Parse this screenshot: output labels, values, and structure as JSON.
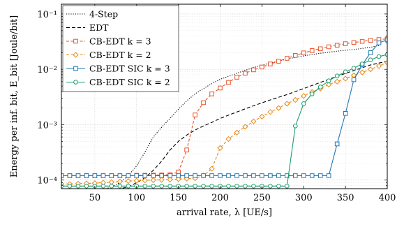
{
  "chart_data": {
    "type": "line",
    "title": "",
    "xlabel": "arrival rate, λ [UE/s]",
    "ylabel": "Energy per inf. bit, E_bit [Joule/bit]",
    "xlim": [
      10,
      400
    ],
    "ylim": [
      7e-05,
      0.15
    ],
    "yscale": "log",
    "grid": true,
    "legend_position": "top-left",
    "x_ticks": [
      50,
      100,
      150,
      200,
      250,
      300,
      350,
      400
    ],
    "x_tick_labels": [
      "50",
      "100",
      "150",
      "200",
      "250",
      "300",
      "350",
      "400"
    ],
    "y_ticks": [
      0.0001,
      0.001,
      0.01,
      0.1
    ],
    "y_tick_labels": [
      "10⁻⁴",
      "10⁻³",
      "10⁻²",
      "10⁻¹"
    ],
    "series": [
      {
        "name": "4-Step",
        "color": "#000000",
        "dash": "1.2 2",
        "marker": "none",
        "points": [
          [
            10,
            5.5e-05
          ],
          [
            30,
            5.8e-05
          ],
          [
            50,
            6.2e-05
          ],
          [
            70,
            7.5e-05
          ],
          [
            80,
            9e-05
          ],
          [
            90,
            0.00012
          ],
          [
            100,
            0.00018
          ],
          [
            110,
            0.00032
          ],
          [
            120,
            0.0006
          ],
          [
            130,
            0.0009
          ],
          [
            140,
            0.0013
          ],
          [
            150,
            0.0019
          ],
          [
            160,
            0.0027
          ],
          [
            170,
            0.0036
          ],
          [
            180,
            0.0045
          ],
          [
            190,
            0.0055
          ],
          [
            200,
            0.0066
          ],
          [
            220,
            0.0085
          ],
          [
            240,
            0.0108
          ],
          [
            260,
            0.013
          ],
          [
            280,
            0.0153
          ],
          [
            300,
            0.0175
          ],
          [
            320,
            0.0195
          ],
          [
            340,
            0.0213
          ],
          [
            360,
            0.0228
          ],
          [
            380,
            0.025
          ],
          [
            390,
            0.027
          ]
        ]
      },
      {
        "name": "EDT",
        "color": "#000000",
        "dash": "5 3",
        "marker": "none",
        "points": [
          [
            10,
            6e-05
          ],
          [
            30,
            6.2e-05
          ],
          [
            50,
            6.5e-05
          ],
          [
            70,
            6.8e-05
          ],
          [
            80,
            7e-05
          ],
          [
            90,
            7.5e-05
          ],
          [
            100,
            9e-05
          ],
          [
            110,
            0.00011
          ],
          [
            120,
            0.00015
          ],
          [
            130,
            0.00022
          ],
          [
            140,
            0.00035
          ],
          [
            150,
            0.0005
          ],
          [
            160,
            0.00065
          ],
          [
            170,
            0.0008
          ],
          [
            180,
            0.00095
          ],
          [
            190,
            0.0011
          ],
          [
            200,
            0.0013
          ],
          [
            220,
            0.0017
          ],
          [
            240,
            0.0022
          ],
          [
            260,
            0.0028
          ],
          [
            280,
            0.0035
          ],
          [
            300,
            0.0045
          ],
          [
            320,
            0.0058
          ],
          [
            340,
            0.0075
          ],
          [
            360,
            0.0095
          ],
          [
            380,
            0.012
          ],
          [
            400,
            0.014
          ]
        ]
      },
      {
        "name": "CB-EDT k = 3",
        "color": "#e8542a",
        "dash": "4 2.5",
        "marker": "square",
        "points": [
          [
            10,
            0.00012
          ],
          [
            20,
            0.00012
          ],
          [
            30,
            0.00012
          ],
          [
            40,
            0.00012
          ],
          [
            50,
            0.00012
          ],
          [
            60,
            0.00012
          ],
          [
            70,
            0.00012
          ],
          [
            80,
            0.00012
          ],
          [
            90,
            0.00012
          ],
          [
            100,
            0.000122
          ],
          [
            110,
            0.000122
          ],
          [
            120,
            0.000123
          ],
          [
            130,
            0.000124
          ],
          [
            140,
            0.000125
          ],
          [
            150,
            0.00014
          ],
          [
            160,
            0.00035
          ],
          [
            170,
            0.0015
          ],
          [
            180,
            0.0025
          ],
          [
            190,
            0.0036
          ],
          [
            200,
            0.0046
          ],
          [
            210,
            0.0058
          ],
          [
            220,
            0.0072
          ],
          [
            230,
            0.0085
          ],
          [
            240,
            0.0098
          ],
          [
            250,
            0.011
          ],
          [
            260,
            0.0125
          ],
          [
            270,
            0.014
          ],
          [
            280,
            0.0158
          ],
          [
            290,
            0.0178
          ],
          [
            300,
            0.0198
          ],
          [
            310,
            0.0218
          ],
          [
            320,
            0.0235
          ],
          [
            330,
            0.0255
          ],
          [
            340,
            0.0272
          ],
          [
            350,
            0.029
          ],
          [
            360,
            0.0305
          ],
          [
            370,
            0.032
          ],
          [
            380,
            0.0333
          ],
          [
            390,
            0.0345
          ],
          [
            400,
            0.0355
          ]
        ]
      },
      {
        "name": "CB-EDT k = 2",
        "color": "#e8891a",
        "dash": "4 2.5",
        "marker": "diamond",
        "points": [
          [
            10,
            8.5e-05
          ],
          [
            20,
            8.5e-05
          ],
          [
            30,
            8.6e-05
          ],
          [
            40,
            8.7e-05
          ],
          [
            50,
            8.8e-05
          ],
          [
            60,
            9e-05
          ],
          [
            70,
            9.2e-05
          ],
          [
            80,
            9.4e-05
          ],
          [
            90,
            9.6e-05
          ],
          [
            100,
            9.75e-05
          ],
          [
            110,
            9.9e-05
          ],
          [
            120,
            0.0001
          ],
          [
            130,
            0.000101
          ],
          [
            140,
            0.000102
          ],
          [
            150,
            0.000104
          ],
          [
            160,
            0.000106
          ],
          [
            170,
            0.000108
          ],
          [
            180,
            0.00012
          ],
          [
            190,
            0.00016
          ],
          [
            200,
            0.00038
          ],
          [
            210,
            0.00055
          ],
          [
            220,
            0.00072
          ],
          [
            230,
            0.00092
          ],
          [
            240,
            0.00115
          ],
          [
            250,
            0.0014
          ],
          [
            260,
            0.0017
          ],
          [
            270,
            0.002
          ],
          [
            280,
            0.0024
          ],
          [
            290,
            0.0028
          ],
          [
            300,
            0.0033
          ],
          [
            310,
            0.0039
          ],
          [
            320,
            0.0045
          ],
          [
            330,
            0.0053
          ],
          [
            340,
            0.006
          ],
          [
            350,
            0.0068
          ],
          [
            360,
            0.0078
          ],
          [
            370,
            0.0088
          ],
          [
            380,
            0.01
          ],
          [
            390,
            0.0115
          ],
          [
            400,
            0.0132
          ]
        ]
      },
      {
        "name": "CB-EDT SIC k = 3",
        "color": "#1f77b4",
        "dash": "",
        "marker": "square",
        "points": [
          [
            10,
            0.00012
          ],
          [
            20,
            0.00012
          ],
          [
            30,
            0.00012
          ],
          [
            40,
            0.00012
          ],
          [
            50,
            0.00012
          ],
          [
            60,
            0.00012
          ],
          [
            70,
            0.00012
          ],
          [
            80,
            0.00012
          ],
          [
            90,
            0.00012
          ],
          [
            100,
            0.00012
          ],
          [
            110,
            0.00012
          ],
          [
            120,
            0.00012
          ],
          [
            130,
            0.00012
          ],
          [
            140,
            0.00012
          ],
          [
            150,
            0.00012
          ],
          [
            160,
            0.00012
          ],
          [
            170,
            0.00012
          ],
          [
            180,
            0.00012
          ],
          [
            190,
            0.00012
          ],
          [
            200,
            0.00012
          ],
          [
            210,
            0.00012
          ],
          [
            220,
            0.00012
          ],
          [
            230,
            0.00012
          ],
          [
            240,
            0.00012
          ],
          [
            250,
            0.00012
          ],
          [
            260,
            0.00012
          ],
          [
            270,
            0.00012
          ],
          [
            280,
            0.00012
          ],
          [
            290,
            0.00012
          ],
          [
            300,
            0.00012
          ],
          [
            310,
            0.00012
          ],
          [
            320,
            0.00012
          ],
          [
            330,
            0.00012
          ],
          [
            340,
            0.00045
          ],
          [
            350,
            0.0016
          ],
          [
            360,
            0.0065
          ],
          [
            370,
            0.012
          ],
          [
            380,
            0.02
          ],
          [
            390,
            0.03
          ],
          [
            400,
            0.034
          ]
        ]
      },
      {
        "name": "CB-EDT SIC k = 2",
        "color": "#1a9e6a",
        "dash": "",
        "marker": "circle",
        "points": [
          [
            10,
            7.8e-05
          ],
          [
            20,
            7.8e-05
          ],
          [
            30,
            7.8e-05
          ],
          [
            40,
            7.8e-05
          ],
          [
            50,
            7.8e-05
          ],
          [
            60,
            7.8e-05
          ],
          [
            70,
            7.8e-05
          ],
          [
            80,
            7.8e-05
          ],
          [
            90,
            7.8e-05
          ],
          [
            100,
            7.8e-05
          ],
          [
            110,
            7.8e-05
          ],
          [
            120,
            7.8e-05
          ],
          [
            130,
            7.8e-05
          ],
          [
            140,
            7.8e-05
          ],
          [
            150,
            7.8e-05
          ],
          [
            160,
            7.8e-05
          ],
          [
            170,
            7.8e-05
          ],
          [
            180,
            7.8e-05
          ],
          [
            190,
            7.8e-05
          ],
          [
            200,
            7.8e-05
          ],
          [
            210,
            7.8e-05
          ],
          [
            220,
            7.8e-05
          ],
          [
            230,
            7.8e-05
          ],
          [
            240,
            7.8e-05
          ],
          [
            250,
            7.8e-05
          ],
          [
            260,
            7.8e-05
          ],
          [
            270,
            7.8e-05
          ],
          [
            280,
            7.8e-05
          ],
          [
            290,
            0.00095
          ],
          [
            300,
            0.0024
          ],
          [
            310,
            0.0036
          ],
          [
            320,
            0.0048
          ],
          [
            330,
            0.0062
          ],
          [
            340,
            0.0076
          ],
          [
            350,
            0.009
          ],
          [
            360,
            0.0105
          ],
          [
            370,
            0.0125
          ],
          [
            380,
            0.0148
          ],
          [
            390,
            0.017
          ],
          [
            400,
            0.0185
          ]
        ]
      }
    ]
  }
}
